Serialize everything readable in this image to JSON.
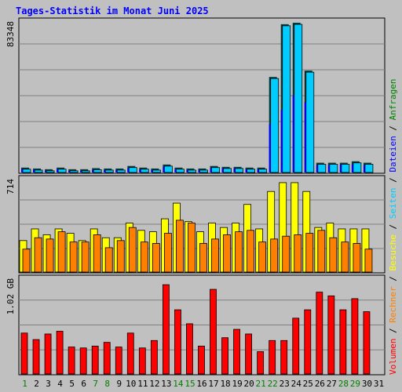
{
  "chart_data": {
    "type": "bar",
    "title": "Tages-Statistik im Monat Juni 2025",
    "colors": {
      "background": "#c0c0c0",
      "title": "#0000ff",
      "anfragen": "#00ccff",
      "dateien": "#0000ff",
      "seiten": "#00ccff",
      "besuche": "#ffff00",
      "rechner": "#ff8000",
      "volumen": "#ff0000",
      "weekend_label": "#008000"
    },
    "categories": [
      "1",
      "2",
      "3",
      "4",
      "5",
      "6",
      "7",
      "8",
      "9",
      "10",
      "11",
      "12",
      "13",
      "14",
      "15",
      "16",
      "17",
      "18",
      "19",
      "20",
      "21",
      "22",
      "23",
      "24",
      "25",
      "26",
      "27",
      "28",
      "29",
      "30",
      "31"
    ],
    "weekend_days": [
      "1",
      "7",
      "8",
      "14",
      "15",
      "21",
      "22",
      "28",
      "29"
    ],
    "panels": [
      {
        "name": "top",
        "ymax_label": "83348",
        "ymax": 83348,
        "series": [
          {
            "name": "Anfragen",
            "values": [
              2700,
              2200,
              1800,
              2700,
              1800,
              1800,
              2400,
              2200,
              2200,
              3600,
              2700,
              2200,
              4400,
              2700,
              2200,
              2200,
              3600,
              3100,
              3100,
              2700,
              2700,
              52900,
              82100,
              82900,
              56400,
              5400,
              5400,
              5400,
              6200,
              5400,
              0
            ]
          },
          {
            "name": "Dateien",
            "values": [
              1800,
              1300,
              900,
              1800,
              900,
              900,
              1300,
              1300,
              1300,
              2200,
              1800,
              1300,
              3100,
              1800,
              1300,
              1300,
              2200,
              2200,
              2200,
              1800,
              1800,
              26700,
              34600,
              42700,
              39000,
              4000,
              4000,
              4400,
              4400,
              4000,
              0
            ]
          }
        ]
      },
      {
        "name": "middle",
        "ymax_label": "714",
        "ymax": 714,
        "series": [
          {
            "name": "Besuche",
            "values": [
              243,
              333,
              288,
              333,
              299,
              243,
              333,
              265,
              265,
              378,
              322,
              311,
              411,
              532,
              389,
              311,
              378,
              344,
              378,
              522,
              333,
              622,
              690,
              690,
              622,
              344,
              378,
              333,
              333,
              333,
              0
            ]
          },
          {
            "name": "Rechner",
            "values": [
              177,
              265,
              255,
              311,
              232,
              232,
              288,
              188,
              243,
              344,
              232,
              221,
              299,
              400,
              378,
              221,
              255,
              288,
              311,
              322,
              232,
              255,
              277,
              288,
              299,
              322,
              265,
              232,
              221,
              177,
              0
            ]
          }
        ]
      },
      {
        "name": "bottom",
        "ymax_label": "1.02 GB",
        "ymax": 1.02,
        "series": [
          {
            "name": "Volumen",
            "values": [
              0.44,
              0.37,
              0.43,
              0.46,
              0.29,
              0.28,
              0.3,
              0.34,
              0.29,
              0.44,
              0.28,
              0.36,
              0.96,
              0.69,
              0.54,
              0.3,
              0.91,
              0.39,
              0.48,
              0.43,
              0.24,
              0.36,
              0.36,
              0.6,
              0.69,
              0.88,
              0.84,
              0.69,
              0.81,
              0.67,
              0
            ]
          }
        ]
      }
    ],
    "legend": {
      "placement": "right-vertical",
      "items": [
        {
          "label": "Volumen",
          "color": "#ff0000"
        },
        {
          "label": "Rechner",
          "color": "#ff8000"
        },
        {
          "label": "Besuche",
          "color": "#ffff00"
        },
        {
          "label": "Seiten",
          "color": "#00ccff"
        },
        {
          "label": "Dateien",
          "color": "#0000ff"
        },
        {
          "label": "Anfragen",
          "color": "#008000"
        }
      ],
      "separator": " / "
    },
    "grid": true
  }
}
